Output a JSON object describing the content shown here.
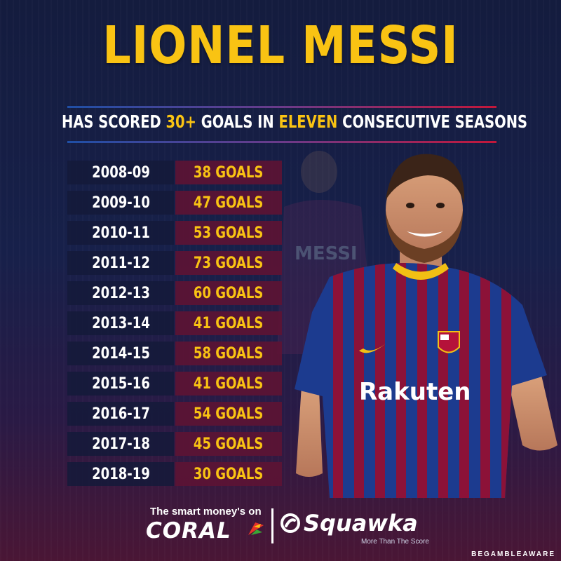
{
  "header": {
    "title": "LIONEL MESSI",
    "subtitle_pre": "HAS SCORED ",
    "subtitle_num": "30+",
    "subtitle_mid": " GOALS IN ",
    "subtitle_hl": "ELEVEN",
    "subtitle_post": " CONSECUTIVE SEASONS"
  },
  "seasons": [
    {
      "season": "2008-09",
      "goals": "38 GOALS"
    },
    {
      "season": "2009-10",
      "goals": "47 GOALS"
    },
    {
      "season": "2010-11",
      "goals": "53 GOALS"
    },
    {
      "season": "2011-12",
      "goals": "73 GOALS"
    },
    {
      "season": "2012-13",
      "goals": "60 GOALS"
    },
    {
      "season": "2013-14",
      "goals": "41 GOALS"
    },
    {
      "season": "2014-15",
      "goals": "58 GOALS"
    },
    {
      "season": "2015-16",
      "goals": "41 GOALS"
    },
    {
      "season": "2016-17",
      "goals": "54 GOALS"
    },
    {
      "season": "2017-18",
      "goals": "45 GOALS"
    },
    {
      "season": "2018-19",
      "goals": "30 GOALS"
    }
  ],
  "player_image": {
    "shirt_name": "MESSI",
    "sponsor": "Rakuten"
  },
  "footer": {
    "tagline": "The smart money's on",
    "coral": "CORAL",
    "squawka": "Squawka",
    "squawka_tagline": "More Than The Score",
    "gamble_aware": "BEGAMBLEAWARE"
  },
  "colors": {
    "accent_yellow": "#f9c313",
    "navy": "#17204a",
    "maroon": "#5c1434",
    "rule_blue": "#1f4fa6",
    "rule_red": "#c3173a"
  }
}
